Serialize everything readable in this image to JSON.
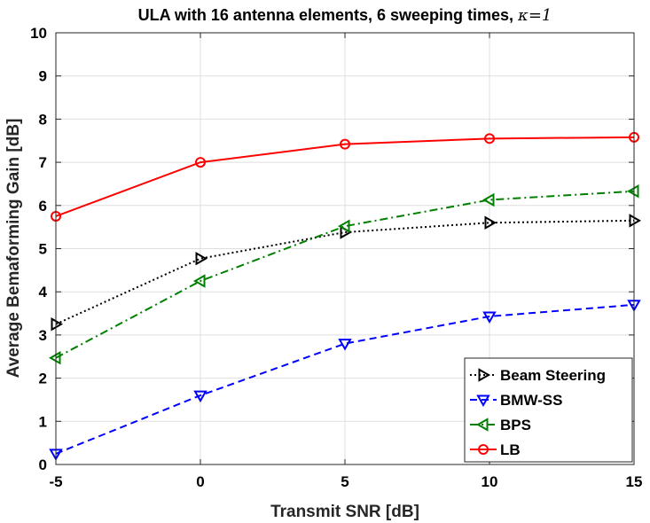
{
  "chart_data": {
    "type": "line",
    "title": "ULA with 16 antenna elements, 6 sweeping times, ",
    "title_symbol": "κ=1",
    "xlabel": "Transmit SNR [dB]",
    "ylabel": "Average Bemaforming Gain [dB]",
    "xlim": [
      -5,
      15
    ],
    "ylim": [
      0,
      10
    ],
    "x": [
      -5,
      0,
      5,
      10,
      15
    ],
    "x_tick_labels": [
      "-5",
      "0",
      "5",
      "10",
      "15"
    ],
    "y_tick_labels": [
      "0",
      "1",
      "2",
      "3",
      "4",
      "5",
      "6",
      "7",
      "8",
      "9",
      "10"
    ],
    "grid": true,
    "legend_position": "bottom-right",
    "series": [
      {
        "name": "Beam Steering",
        "values": [
          3.25,
          4.77,
          5.38,
          5.6,
          5.65
        ],
        "color": "#000000",
        "dash": "dotted",
        "marker": "triangle-right"
      },
      {
        "name": "BMW-SS",
        "values": [
          0.25,
          1.6,
          2.8,
          3.43,
          3.7
        ],
        "color": "#0000ff",
        "dash": "dashed",
        "marker": "triangle-down"
      },
      {
        "name": "BPS",
        "values": [
          2.47,
          4.25,
          5.52,
          6.13,
          6.33
        ],
        "color": "#007f00",
        "dash": "dashdot",
        "marker": "triangle-left"
      },
      {
        "name": "LB",
        "values": [
          5.75,
          7.0,
          7.42,
          7.55,
          7.58
        ],
        "color": "#ff0000",
        "dash": "solid",
        "marker": "circle"
      }
    ]
  }
}
